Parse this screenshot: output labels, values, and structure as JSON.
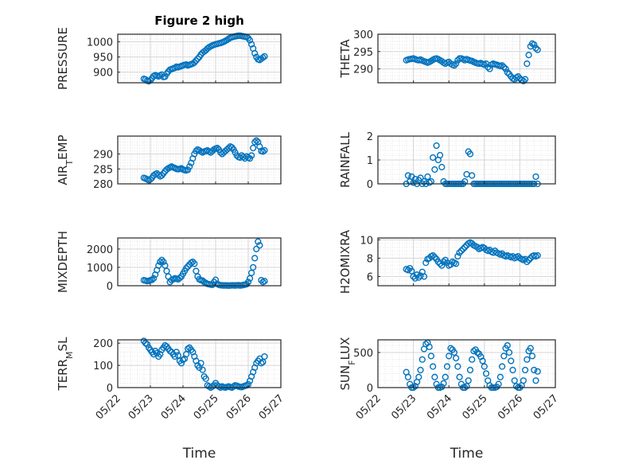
{
  "figure_title": "Figure 2 high",
  "x_axis_label": "Time",
  "x_tick_labels": [
    "05/22",
    "05/23",
    "05/24",
    "05/25",
    "05/26",
    "05/27"
  ],
  "colors": {
    "marker": "#0072BD",
    "axis": "#262626",
    "grid": "#d6d6d6",
    "minor_grid": "#e6e6e6"
  },
  "chart_data": [
    {
      "type": "scatter",
      "title": "Figure 2 high",
      "ylabel": "PRESSURE",
      "xlabel": "",
      "xlim": [
        22,
        27
      ],
      "ylim": [
        865,
        1025
      ],
      "yticks": [
        900,
        950,
        1000
      ],
      "x": [
        22.8,
        22.85,
        22.9,
        22.95,
        23.0,
        23.05,
        23.1,
        23.15,
        23.2,
        23.25,
        23.3,
        23.35,
        23.4,
        23.45,
        23.5,
        23.55,
        23.6,
        23.65,
        23.7,
        23.75,
        23.8,
        23.85,
        23.9,
        23.95,
        24.0,
        24.05,
        24.1,
        24.15,
        24.2,
        24.25,
        24.3,
        24.35,
        24.4,
        24.45,
        24.5,
        24.55,
        24.6,
        24.65,
        24.7,
        24.75,
        24.8,
        24.85,
        24.9,
        24.95,
        25.0,
        25.05,
        25.1,
        25.15,
        25.2,
        25.25,
        25.3,
        25.35,
        25.4,
        25.45,
        25.5,
        25.55,
        25.6,
        25.65,
        25.7,
        25.75,
        25.8,
        25.85,
        25.9,
        25.95,
        26.0,
        26.05,
        26.1,
        26.15,
        26.2,
        26.25,
        26.3,
        26.35,
        26.4,
        26.45,
        26.5
      ],
      "y": [
        878,
        876,
        872,
        870,
        873,
        880,
        887,
        890,
        888,
        886,
        889,
        892,
        884,
        885,
        895,
        902,
        908,
        910,
        912,
        914,
        918,
        916,
        918,
        920,
        922,
        924,
        925,
        922,
        924,
        926,
        928,
        932,
        938,
        944,
        950,
        958,
        964,
        968,
        972,
        978,
        982,
        985,
        988,
        990,
        992,
        993,
        995,
        996,
        998,
        1000,
        1003,
        1006,
        1010,
        1013,
        1015,
        1017,
        1018,
        1019,
        1020,
        1020,
        1019,
        1018,
        1017,
        1016,
        1012,
        1005,
        992,
        978,
        962,
        950,
        942,
        940,
        944,
        948,
        952
      ]
    },
    {
      "type": "scatter",
      "ylabel": "THETA",
      "xlabel": "",
      "xlim": [
        22,
        27
      ],
      "ylim": [
        286,
        300
      ],
      "yticks": [
        290,
        295,
        300
      ],
      "x": [
        22.8,
        22.85,
        22.9,
        22.95,
        23.0,
        23.05,
        23.1,
        23.15,
        23.2,
        23.25,
        23.3,
        23.35,
        23.4,
        23.45,
        23.5,
        23.55,
        23.6,
        23.65,
        23.7,
        23.75,
        23.8,
        23.85,
        23.9,
        23.95,
        24.0,
        24.05,
        24.1,
        24.15,
        24.2,
        24.25,
        24.3,
        24.35,
        24.4,
        24.45,
        24.5,
        24.55,
        24.6,
        24.65,
        24.7,
        24.75,
        24.8,
        24.85,
        24.9,
        24.95,
        25.0,
        25.05,
        25.1,
        25.15,
        25.2,
        25.25,
        25.3,
        25.35,
        25.4,
        25.45,
        25.5,
        25.55,
        25.6,
        25.65,
        25.7,
        25.75,
        25.8,
        25.85,
        25.9,
        25.95,
        26.0,
        26.05,
        26.1,
        26.15,
        26.2,
        26.25,
        26.3,
        26.35,
        26.4,
        26.45,
        26.5
      ],
      "y": [
        292.5,
        292.7,
        292.8,
        292.9,
        293.0,
        292.8,
        292.6,
        292.5,
        292.7,
        292.4,
        292.2,
        292.0,
        291.8,
        292.0,
        292.3,
        292.6,
        292.9,
        293.0,
        292.8,
        292.5,
        292.2,
        291.8,
        291.5,
        291.8,
        292.0,
        291.5,
        291.2,
        291.0,
        291.5,
        292.5,
        293.0,
        293.0,
        292.8,
        292.5,
        292.8,
        292.6,
        292.4,
        292.3,
        292.0,
        291.8,
        291.6,
        291.5,
        291.7,
        291.4,
        291.2,
        291.5,
        290.5,
        290.0,
        291.2,
        291.5,
        291.3,
        291.2,
        291.0,
        290.8,
        291.0,
        290.5,
        290.0,
        289.0,
        288.5,
        287.8,
        287.2,
        287.0,
        287.5,
        287.8,
        287.2,
        286.8,
        286.5,
        287.0,
        291.5,
        294.0,
        296.5,
        297.3,
        297.0,
        296.0,
        295.5
      ]
    },
    {
      "type": "scatter",
      "ylabel": "AIR_TEMP",
      "xlabel": "",
      "xlim": [
        22,
        27
      ],
      "ylim": [
        280,
        296
      ],
      "yticks": [
        280,
        285,
        290
      ],
      "x": [
        22.8,
        22.85,
        22.9,
        22.95,
        23.0,
        23.05,
        23.1,
        23.15,
        23.2,
        23.25,
        23.3,
        23.35,
        23.4,
        23.45,
        23.5,
        23.55,
        23.6,
        23.65,
        23.7,
        23.75,
        23.8,
        23.85,
        23.9,
        23.95,
        24.0,
        24.05,
        24.1,
        24.15,
        24.2,
        24.25,
        24.3,
        24.35,
        24.4,
        24.45,
        24.5,
        24.55,
        24.6,
        24.65,
        24.7,
        24.75,
        24.8,
        24.85,
        24.9,
        24.95,
        25.0,
        25.05,
        25.1,
        25.15,
        25.2,
        25.25,
        25.3,
        25.35,
        25.4,
        25.45,
        25.5,
        25.55,
        25.6,
        25.65,
        25.7,
        25.75,
        25.8,
        25.85,
        25.9,
        25.95,
        26.0,
        26.05,
        26.1,
        26.15,
        26.2,
        26.25,
        26.3,
        26.35,
        26.4,
        26.45,
        26.5
      ],
      "y": [
        282.0,
        281.8,
        281.5,
        281.2,
        281.5,
        282.0,
        282.8,
        283.2,
        283.5,
        283.0,
        282.5,
        282.8,
        283.5,
        284.2,
        284.8,
        285.2,
        285.5,
        285.8,
        285.5,
        285.3,
        285.0,
        284.9,
        285.0,
        285.2,
        284.8,
        284.6,
        284.5,
        284.7,
        285.8,
        287.0,
        288.5,
        290.0,
        291.0,
        291.5,
        291.2,
        290.8,
        290.5,
        290.8,
        291.0,
        291.2,
        290.8,
        290.5,
        291.0,
        291.5,
        291.8,
        292.0,
        291.5,
        290.5,
        290.0,
        290.5,
        291.0,
        291.5,
        292.0,
        292.5,
        292.2,
        291.5,
        290.5,
        289.5,
        289.0,
        288.8,
        289.5,
        289.0,
        288.5,
        289.2,
        288.8,
        288.5,
        289.5,
        292.0,
        294.0,
        294.5,
        294.0,
        292.5,
        291.0,
        290.8,
        291.2
      ]
    },
    {
      "type": "scatter",
      "ylabel": "RAINFALL",
      "xlabel": "",
      "xlim": [
        22,
        27
      ],
      "ylim": [
        0,
        2
      ],
      "yticks": [
        0,
        1,
        2
      ],
      "x": [
        22.8,
        22.85,
        22.9,
        22.95,
        23.0,
        23.05,
        23.1,
        23.15,
        23.2,
        23.25,
        23.3,
        23.35,
        23.4,
        23.45,
        23.5,
        23.55,
        23.6,
        23.65,
        23.7,
        23.75,
        23.8,
        23.85,
        23.9,
        23.95,
        24.0,
        24.05,
        24.1,
        24.15,
        24.2,
        24.25,
        24.3,
        24.35,
        24.4,
        24.45,
        24.5,
        24.55,
        24.6,
        24.65,
        24.7,
        24.75,
        24.8,
        24.85,
        24.9,
        24.95,
        25.0,
        25.05,
        25.1,
        25.15,
        25.2,
        25.25,
        25.3,
        25.35,
        25.4,
        25.45,
        25.5,
        25.55,
        25.6,
        25.65,
        25.7,
        25.75,
        25.8,
        25.85,
        25.9,
        25.95,
        26.0,
        26.05,
        26.1,
        26.15,
        26.2,
        26.25,
        26.3,
        26.35,
        26.4,
        26.45,
        26.5
      ],
      "y": [
        0,
        0.35,
        0.1,
        0.3,
        0.05,
        0.2,
        0,
        0.15,
        0.25,
        0,
        0.1,
        0,
        0.3,
        0.05,
        0.1,
        1.1,
        0.6,
        1.6,
        1.0,
        1.2,
        0.7,
        0.1,
        0,
        0,
        0,
        0,
        0,
        0,
        0,
        0,
        0,
        0,
        0,
        0.1,
        0.4,
        1.35,
        1.25,
        0.35,
        0,
        0,
        0,
        0,
        0,
        0,
        0,
        0,
        0,
        0,
        0,
        0,
        0,
        0,
        0,
        0,
        0,
        0,
        0,
        0,
        0,
        0,
        0,
        0,
        0,
        0,
        0,
        0,
        0,
        0,
        0,
        0,
        0,
        0,
        0,
        0.3,
        0
      ]
    },
    {
      "type": "scatter",
      "ylabel": "MIXDEPTH",
      "xlabel": "",
      "xlim": [
        22,
        27
      ],
      "ylim": [
        0,
        2600
      ],
      "yticks": [
        0,
        1000,
        2000
      ],
      "x": [
        22.8,
        22.85,
        22.9,
        22.95,
        23.0,
        23.05,
        23.1,
        23.15,
        23.2,
        23.25,
        23.3,
        23.35,
        23.4,
        23.45,
        23.5,
        23.55,
        23.6,
        23.65,
        23.7,
        23.75,
        23.8,
        23.85,
        23.9,
        23.95,
        24.0,
        24.05,
        24.1,
        24.15,
        24.2,
        24.25,
        24.3,
        24.35,
        24.4,
        24.45,
        24.5,
        24.55,
        24.6,
        24.65,
        24.7,
        24.75,
        24.8,
        24.85,
        24.9,
        24.95,
        25.0,
        25.05,
        25.1,
        25.15,
        25.2,
        25.25,
        25.3,
        25.35,
        25.4,
        25.45,
        25.5,
        25.55,
        25.6,
        25.65,
        25.7,
        25.75,
        25.8,
        25.85,
        25.9,
        25.95,
        26.0,
        26.05,
        26.1,
        26.15,
        26.2,
        26.25,
        26.3,
        26.35,
        26.4,
        26.45,
        26.5
      ],
      "y": [
        300,
        280,
        250,
        260,
        300,
        320,
        400,
        600,
        850,
        1100,
        1300,
        1400,
        1300,
        1100,
        800,
        500,
        200,
        300,
        350,
        400,
        380,
        350,
        420,
        500,
        650,
        800,
        950,
        1050,
        1150,
        1250,
        1300,
        1200,
        800,
        500,
        350,
        300,
        280,
        200,
        150,
        100,
        80,
        60,
        50,
        200,
        320,
        100,
        50,
        30,
        20,
        10,
        15,
        10,
        5,
        10,
        20,
        15,
        10,
        20,
        30,
        10,
        20,
        40,
        60,
        80,
        200,
        400,
        700,
        1000,
        1500,
        2000,
        2400,
        2200,
        300,
        200,
        250
      ]
    },
    {
      "type": "scatter",
      "ylabel": "H2OMIXRA",
      "xlabel": "",
      "xlim": [
        22,
        27
      ],
      "ylim": [
        5,
        10.2
      ],
      "yticks": [
        6,
        8,
        10
      ],
      "x": [
        22.8,
        22.85,
        22.9,
        22.95,
        23.0,
        23.05,
        23.1,
        23.15,
        23.2,
        23.25,
        23.3,
        23.35,
        23.4,
        23.45,
        23.5,
        23.55,
        23.6,
        23.65,
        23.7,
        23.75,
        23.8,
        23.85,
        23.9,
        23.95,
        24.0,
        24.05,
        24.1,
        24.15,
        24.2,
        24.25,
        24.3,
        24.35,
        24.4,
        24.45,
        24.5,
        24.55,
        24.6,
        24.65,
        24.7,
        24.75,
        24.8,
        24.85,
        24.9,
        24.95,
        25.0,
        25.05,
        25.1,
        25.15,
        25.2,
        25.25,
        25.3,
        25.35,
        25.4,
        25.45,
        25.5,
        25.55,
        25.6,
        25.65,
        25.7,
        25.75,
        25.8,
        25.85,
        25.9,
        25.95,
        26.0,
        26.05,
        26.1,
        26.15,
        26.2,
        26.25,
        26.3,
        26.35,
        26.4,
        26.45,
        26.5
      ],
      "y": [
        6.8,
        6.7,
        6.9,
        6.6,
        6.0,
        5.8,
        6.2,
        5.9,
        6.1,
        6.5,
        6.0,
        7.5,
        7.9,
        8.0,
        8.2,
        8.3,
        8.1,
        7.9,
        7.6,
        7.4,
        7.2,
        7.6,
        7.8,
        7.5,
        7.2,
        7.3,
        7.6,
        7.5,
        7.4,
        8.2,
        8.6,
        8.8,
        9.0,
        9.2,
        9.4,
        9.6,
        9.7,
        9.6,
        9.4,
        9.3,
        9.2,
        9.0,
        9.1,
        9.2,
        9.1,
        8.9,
        8.8,
        8.9,
        8.7,
        8.6,
        8.8,
        8.6,
        8.5,
        8.4,
        8.5,
        8.3,
        8.2,
        8.3,
        8.2,
        8.1,
        8.2,
        8.0,
        8.1,
        8.2,
        8.0,
        7.9,
        7.8,
        7.9,
        7.6,
        7.8,
        8.0,
        8.2,
        8.3,
        8.2,
        8.3
      ]
    },
    {
      "type": "scatter",
      "ylabel": "TERR_MSL",
      "xlabel": "Time",
      "xlim": [
        22,
        27
      ],
      "ylim": [
        0,
        215
      ],
      "yticks": [
        0,
        100,
        200
      ],
      "xtick_labels": [
        "05/22",
        "05/23",
        "05/24",
        "05/25",
        "05/26",
        "05/27"
      ],
      "x": [
        22.8,
        22.85,
        22.9,
        22.95,
        23.0,
        23.05,
        23.1,
        23.15,
        23.2,
        23.25,
        23.3,
        23.35,
        23.4,
        23.45,
        23.5,
        23.55,
        23.6,
        23.65,
        23.7,
        23.75,
        23.8,
        23.85,
        23.9,
        23.95,
        24.0,
        24.05,
        24.1,
        24.15,
        24.2,
        24.25,
        24.3,
        24.35,
        24.4,
        24.45,
        24.5,
        24.55,
        24.6,
        24.65,
        24.7,
        24.75,
        24.8,
        24.85,
        24.9,
        24.95,
        25.0,
        25.05,
        25.1,
        25.15,
        25.2,
        25.25,
        25.3,
        25.35,
        25.4,
        25.45,
        25.5,
        25.55,
        25.6,
        25.65,
        25.7,
        25.75,
        25.8,
        25.85,
        25.9,
        25.95,
        26.0,
        26.05,
        26.1,
        26.15,
        26.2,
        26.25,
        26.3,
        26.35,
        26.4,
        26.45,
        26.5
      ],
      "y": [
        210,
        200,
        195,
        180,
        170,
        160,
        150,
        165,
        155,
        140,
        150,
        170,
        180,
        190,
        185,
        175,
        165,
        160,
        150,
        140,
        160,
        145,
        120,
        110,
        125,
        130,
        150,
        175,
        180,
        170,
        160,
        140,
        120,
        100,
        90,
        110,
        80,
        50,
        40,
        10,
        5,
        0,
        5,
        10,
        20,
        10,
        5,
        0,
        5,
        2,
        0,
        3,
        5,
        2,
        0,
        5,
        10,
        8,
        5,
        3,
        2,
        5,
        8,
        10,
        15,
        30,
        50,
        70,
        90,
        110,
        120,
        130,
        110,
        115,
        140
      ]
    },
    {
      "type": "scatter",
      "ylabel": "SUN_FLUX",
      "xlabel": "Time",
      "xlim": [
        22,
        27
      ],
      "ylim": [
        0,
        680
      ],
      "yticks": [
        0,
        500
      ],
      "xtick_labels": [
        "05/22",
        "05/23",
        "05/24",
        "05/25",
        "05/26",
        "05/27"
      ],
      "x": [
        22.8,
        22.85,
        22.9,
        22.95,
        23.0,
        23.05,
        23.1,
        23.15,
        23.2,
        23.25,
        23.3,
        23.35,
        23.4,
        23.45,
        23.5,
        23.55,
        23.6,
        23.65,
        23.7,
        23.75,
        23.8,
        23.85,
        23.9,
        23.95,
        24.0,
        24.05,
        24.1,
        24.15,
        24.2,
        24.25,
        24.3,
        24.35,
        24.4,
        24.45,
        24.5,
        24.55,
        24.6,
        24.65,
        24.7,
        24.75,
        24.8,
        24.85,
        24.9,
        24.95,
        25.0,
        25.05,
        25.1,
        25.15,
        25.2,
        25.25,
        25.3,
        25.35,
        25.4,
        25.45,
        25.5,
        25.55,
        25.6,
        25.65,
        25.7,
        25.75,
        25.8,
        25.85,
        25.9,
        25.95,
        26.0,
        26.05,
        26.1,
        26.15,
        26.2,
        26.25,
        26.3,
        26.35,
        26.4,
        26.45,
        26.5
      ],
      "y": [
        220,
        150,
        50,
        0,
        0,
        20,
        80,
        150,
        250,
        400,
        550,
        620,
        640,
        580,
        450,
        300,
        150,
        50,
        0,
        0,
        10,
        60,
        150,
        300,
        450,
        560,
        540,
        500,
        420,
        300,
        150,
        50,
        0,
        0,
        20,
        100,
        250,
        400,
        520,
        540,
        500,
        480,
        440,
        380,
        300,
        200,
        100,
        30,
        0,
        0,
        0,
        10,
        50,
        150,
        300,
        450,
        560,
        600,
        500,
        380,
        250,
        100,
        20,
        0,
        0,
        30,
        100,
        250,
        400,
        520,
        560,
        450,
        250,
        100,
        230
      ]
    }
  ]
}
